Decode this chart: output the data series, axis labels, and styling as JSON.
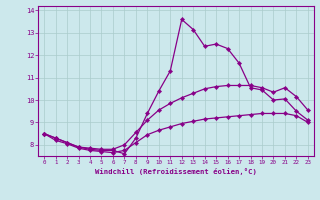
{
  "x_values": [
    0,
    1,
    2,
    3,
    4,
    5,
    6,
    7,
    8,
    9,
    10,
    11,
    12,
    13,
    14,
    15,
    16,
    17,
    18,
    19,
    20,
    21,
    22,
    23
  ],
  "line_spiky": [
    8.5,
    8.3,
    8.1,
    7.9,
    7.8,
    7.75,
    7.75,
    7.6,
    8.3,
    9.4,
    10.4,
    11.3,
    13.6,
    13.15,
    12.4,
    12.5,
    12.3,
    11.65,
    10.55,
    10.45,
    10.0,
    10.05,
    9.5,
    9.1
  ],
  "line_mid_upper": [
    8.5,
    8.3,
    8.1,
    7.9,
    7.8,
    7.75,
    7.75,
    7.6,
    8.3,
    9.4,
    10.4,
    11.3,
    null,
    null,
    null,
    null,
    null,
    null,
    null,
    null,
    null,
    null,
    null,
    null
  ],
  "line_upper": [
    8.5,
    8.3,
    8.1,
    7.9,
    7.85,
    7.8,
    7.8,
    8.0,
    8.55,
    9.1,
    9.55,
    9.85,
    10.1,
    10.3,
    10.5,
    10.6,
    10.65,
    10.65,
    10.65,
    10.55,
    10.35,
    10.55,
    10.15,
    9.55
  ],
  "line_lower": [
    8.5,
    8.2,
    8.05,
    7.85,
    7.75,
    7.7,
    7.65,
    7.75,
    8.1,
    8.45,
    8.65,
    8.8,
    8.95,
    9.05,
    9.15,
    9.2,
    9.25,
    9.3,
    9.35,
    9.4,
    9.4,
    9.4,
    9.3,
    9.0
  ],
  "bg_color": "#cce8ec",
  "line_color": "#880088",
  "grid_color": "#aacccc",
  "xlabel": "Windchill (Refroidissement éolien,°C)",
  "ylim": [
    7.5,
    14.2
  ],
  "xlim": [
    -0.5,
    23.5
  ],
  "yticks": [
    8,
    9,
    10,
    11,
    12,
    13,
    14
  ],
  "xticks": [
    0,
    1,
    2,
    3,
    4,
    5,
    6,
    7,
    8,
    9,
    10,
    11,
    12,
    13,
    14,
    15,
    16,
    17,
    18,
    19,
    20,
    21,
    22,
    23
  ]
}
